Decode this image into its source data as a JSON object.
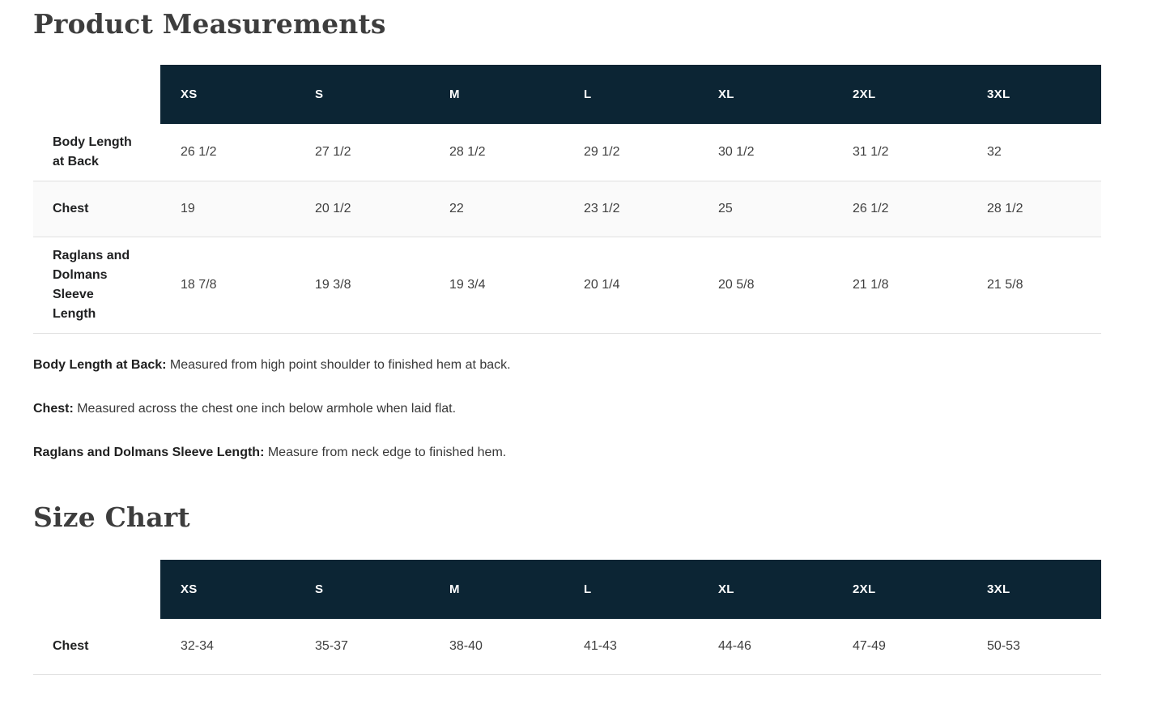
{
  "colors": {
    "header_navy": "#0c2534",
    "alt_row": "#fafafa",
    "divider": "#e0e0e0"
  },
  "measurements": {
    "title": "Product Measurements",
    "columns": [
      "XS",
      "S",
      "M",
      "L",
      "XL",
      "2XL",
      "3XL"
    ],
    "rows": [
      {
        "label": "Body Length at Back",
        "values": [
          "26 1/2",
          "27 1/2",
          "28 1/2",
          "29 1/2",
          "30 1/2",
          "31 1/2",
          "32"
        ]
      },
      {
        "label": "Chest",
        "values": [
          "19",
          "20 1/2",
          "22",
          "23 1/2",
          "25",
          "26 1/2",
          "28 1/2"
        ]
      },
      {
        "label": "Raglans and Dolmans Sleeve Length",
        "values": [
          "18 7/8",
          "19 3/8",
          "19 3/4",
          "20 1/4",
          "20 5/8",
          "21 1/8",
          "21 5/8"
        ]
      }
    ],
    "notes": [
      {
        "term": "Body Length at Back:",
        "definition": " Measured from high point shoulder to finished hem at back."
      },
      {
        "term": "Chest:",
        "definition": " Measured across the chest one inch below armhole when laid flat."
      },
      {
        "term": "Raglans and Dolmans Sleeve Length:",
        "definition": " Measure from neck edge to finished hem."
      }
    ]
  },
  "size_chart": {
    "title": "Size Chart",
    "columns": [
      "XS",
      "S",
      "M",
      "L",
      "XL",
      "2XL",
      "3XL"
    ],
    "rows": [
      {
        "label": "Chest",
        "values": [
          "32-34",
          "35-37",
          "38-40",
          "41-43",
          "44-46",
          "47-49",
          "50-53"
        ]
      }
    ]
  }
}
